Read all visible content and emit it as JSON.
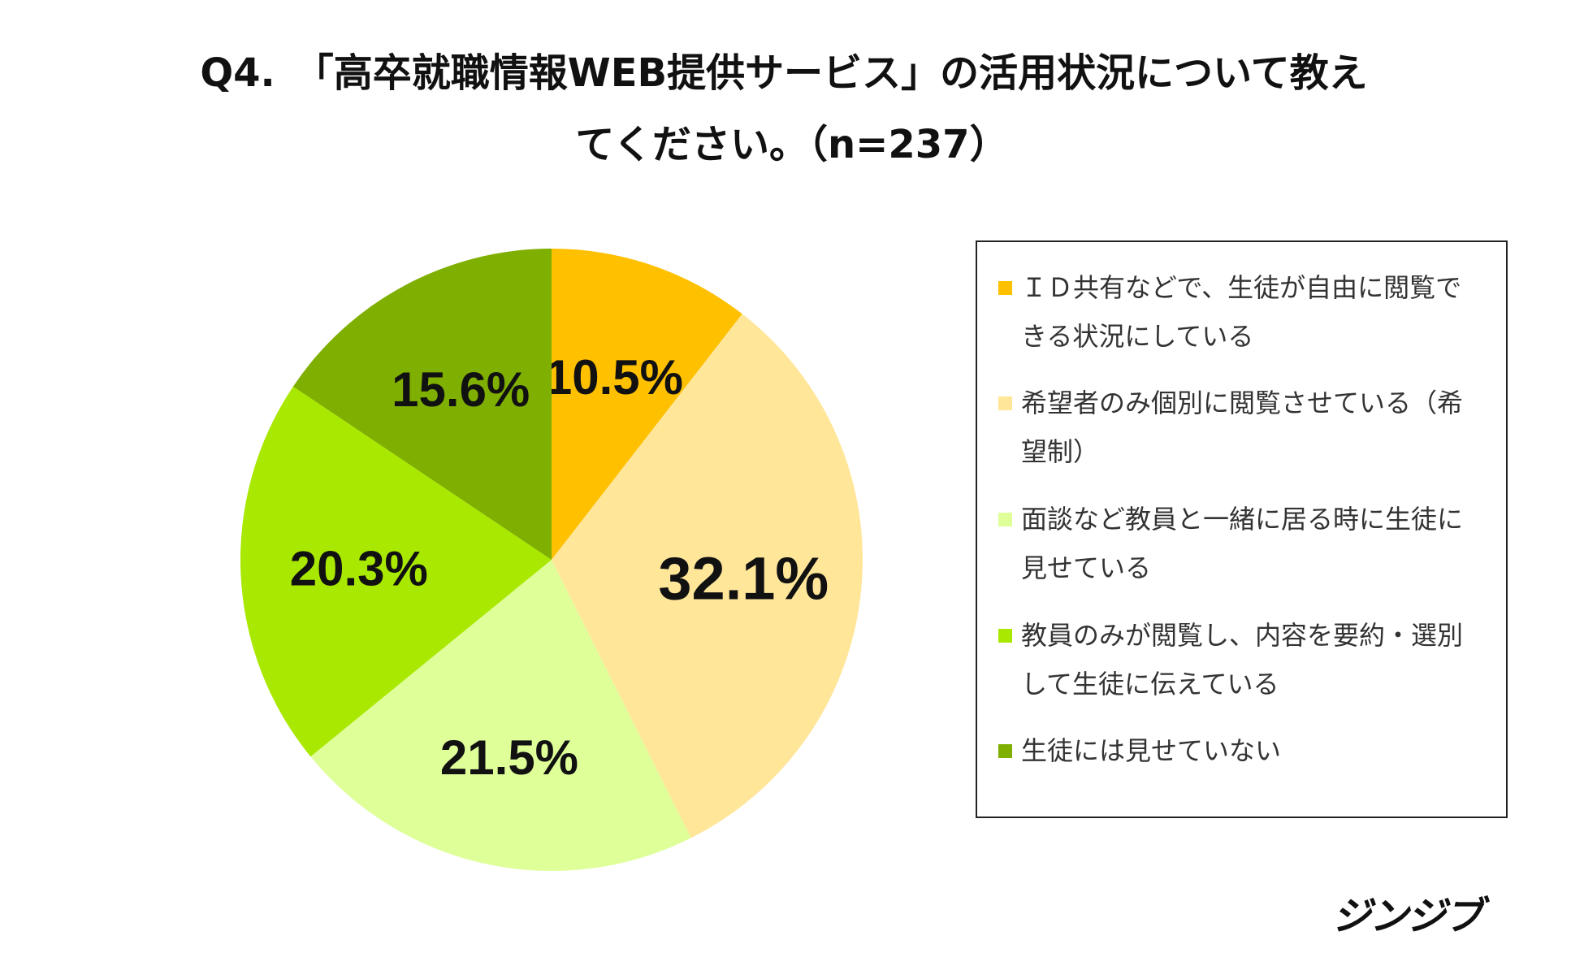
{
  "chart_data": {
    "type": "pie",
    "title_line1": "Q4.　「高卒就職情報WEB提供サービス」の活用状況について教え",
    "title_line2": "てください。（n=237）",
    "start": "top",
    "direction": "clockwise",
    "slices": [
      {
        "label": "ＩＤ共有などで、生徒が自由に閲覧できる状況にしている",
        "value": 10.5,
        "text": "10.5%",
        "color": "#FFC000"
      },
      {
        "label": "希望者のみ個別に閲覧させている（希望制）",
        "value": 32.1,
        "text": "32.1%",
        "color": "#FFE699"
      },
      {
        "label": "面談など教員と一緒に居る時に生徒に見せている",
        "value": 21.5,
        "text": "21.5%",
        "color": "#DFFF99"
      },
      {
        "label": "教員のみが閲覧し、内容を要約・選別して生徒に伝えている",
        "value": 20.3,
        "text": "20.3%",
        "color": "#A9E800"
      },
      {
        "label": "生徒には見せていない",
        "value": 15.6,
        "text": "15.6%",
        "color": "#7FAF00"
      }
    ],
    "legend_position": "right"
  },
  "logo": "ジンジブ"
}
